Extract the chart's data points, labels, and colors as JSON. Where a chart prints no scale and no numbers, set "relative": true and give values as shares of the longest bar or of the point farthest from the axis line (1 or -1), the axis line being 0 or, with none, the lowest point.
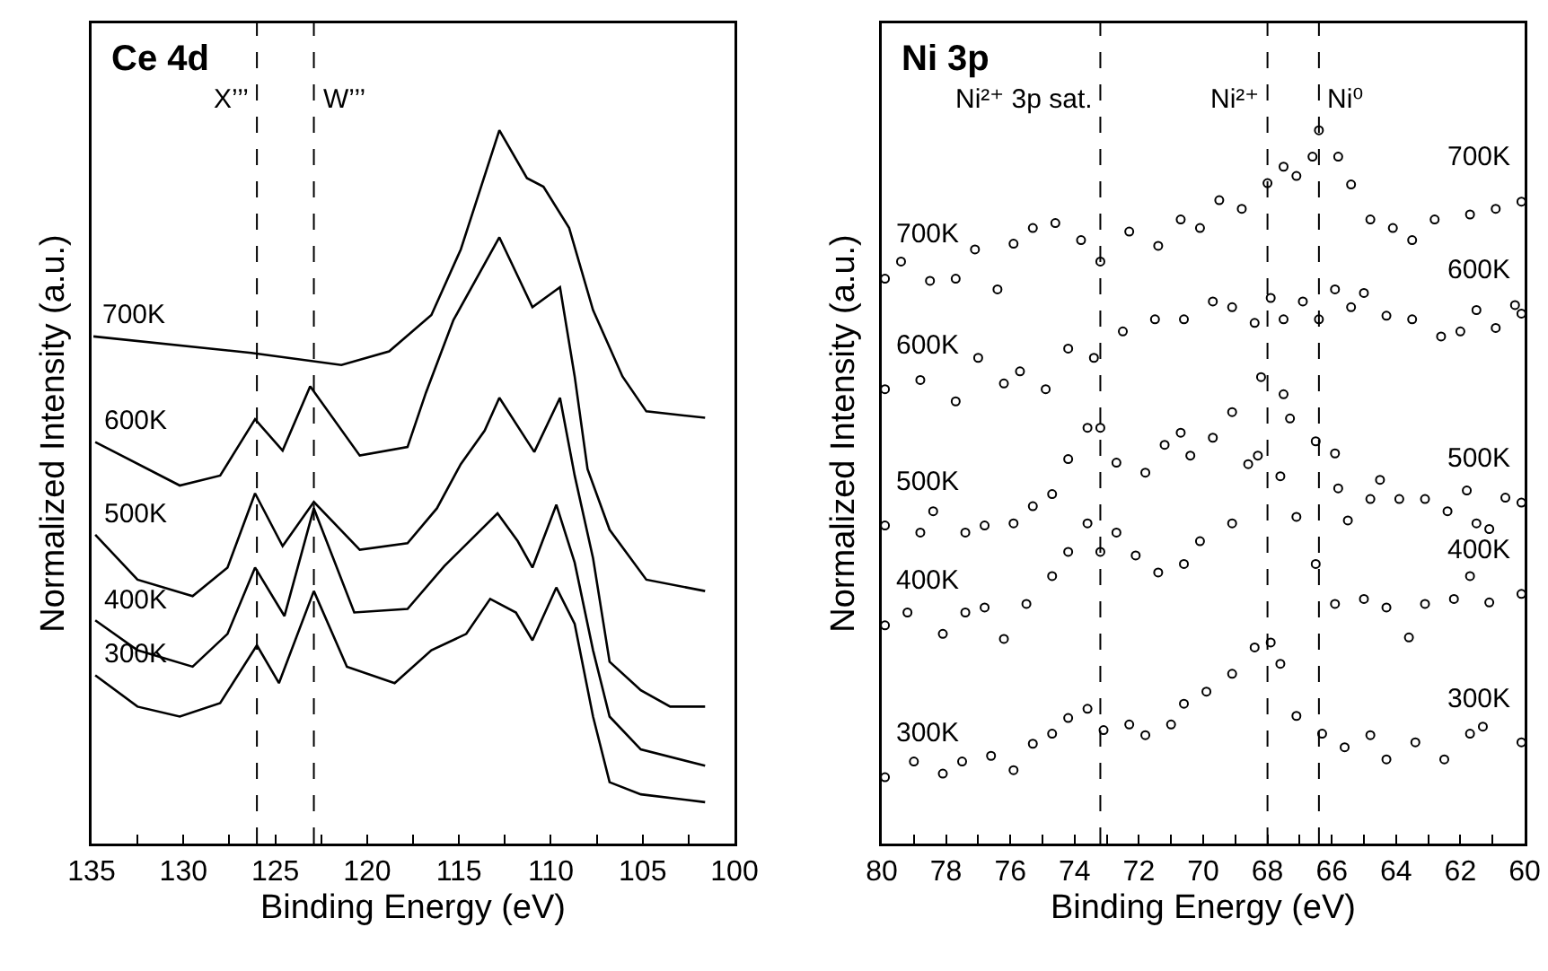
{
  "chart_data": [
    {
      "type": "line",
      "title": "Ce 4d",
      "xlabel": "Binding Energy (eV)",
      "ylabel": "Normalized Intensity (a.u.)",
      "relative": true,
      "tick_labels": "x",
      "legend": false,
      "marker": "none",
      "line_style": "solid",
      "xlim": [
        135,
        100
      ],
      "xticks": [
        135,
        {
          "value": 132.5,
          "label": null
        },
        130,
        {
          "value": 127.5,
          "label": null
        },
        125,
        {
          "value": 122.5,
          "label": null
        },
        120,
        {
          "value": 117.5,
          "label": null
        },
        115,
        {
          "value": 112.5,
          "label": null
        },
        110,
        {
          "value": 107.5,
          "label": null
        },
        105,
        {
          "value": 102.5,
          "label": null
        },
        100
      ],
      "ref_lines": [
        {
          "axis": "x",
          "value": 126,
          "label": "X’’’",
          "line_style": "dashed"
        },
        {
          "axis": "x",
          "value": 122.9,
          "label": "W’’’",
          "line_style": "dashed"
        }
      ],
      "series": [
        {
          "name": "700K",
          "color": "#000000",
          "x": [
            134.9,
            126.3,
            121.4,
            118.8,
            116.5,
            114.9,
            112.8,
            111.3,
            110.4,
            109.0,
            107.7,
            106.1,
            104.8,
            101.6
          ],
          "values": [
            0.711,
            0.688,
            0.671,
            0.69,
            0.741,
            0.833,
            1.0,
            0.933,
            0.921,
            0.863,
            0.748,
            0.655,
            0.606,
            0.597
          ]
        },
        {
          "name": "600K",
          "color": "#000000",
          "x": [
            134.8,
            130.2,
            128.0,
            126.1,
            124.6,
            123.1,
            120.4,
            117.8,
            116.8,
            115.3,
            112.8,
            111.0,
            109.5,
            108.7,
            108.0,
            106.8,
            104.8,
            101.6
          ],
          "values": [
            0.563,
            0.502,
            0.516,
            0.595,
            0.551,
            0.641,
            0.544,
            0.556,
            0.632,
            0.734,
            0.85,
            0.752,
            0.78,
            0.655,
            0.525,
            0.44,
            0.37,
            0.354
          ]
        },
        {
          "name": "500K",
          "color": "#000000",
          "x": [
            134.8,
            132.5,
            129.5,
            127.6,
            126.1,
            124.6,
            122.9,
            120.4,
            117.8,
            116.2,
            114.9,
            113.6,
            112.8,
            110.9,
            109.5,
            108.7,
            107.7,
            106.8,
            105.1,
            103.5,
            101.6
          ],
          "values": [
            0.433,
            0.37,
            0.347,
            0.387,
            0.491,
            0.417,
            0.479,
            0.412,
            0.421,
            0.47,
            0.532,
            0.579,
            0.625,
            0.549,
            0.625,
            0.516,
            0.4,
            0.255,
            0.215,
            0.192,
            0.192
          ]
        },
        {
          "name": "400K",
          "color": "#000000",
          "x": [
            134.8,
            132.5,
            129.5,
            127.6,
            126.1,
            124.5,
            122.9,
            120.7,
            117.8,
            115.8,
            112.9,
            111.8,
            111.0,
            109.7,
            108.7,
            107.7,
            106.8,
            105.1,
            101.6
          ],
          "values": [
            0.313,
            0.271,
            0.248,
            0.294,
            0.387,
            0.319,
            0.47,
            0.324,
            0.329,
            0.389,
            0.463,
            0.424,
            0.387,
            0.475,
            0.394,
            0.271,
            0.178,
            0.132,
            0.109
          ]
        },
        {
          "name": "300K",
          "color": "#000000",
          "x": [
            134.8,
            132.5,
            130.2,
            128.0,
            126.0,
            124.8,
            122.9,
            121.1,
            118.5,
            116.5,
            114.6,
            113.3,
            111.9,
            111.0,
            109.7,
            108.7,
            107.7,
            106.8,
            105.1,
            101.6
          ],
          "values": [
            0.236,
            0.192,
            0.178,
            0.197,
            0.278,
            0.225,
            0.354,
            0.248,
            0.225,
            0.271,
            0.294,
            0.343,
            0.324,
            0.285,
            0.359,
            0.308,
            0.178,
            0.086,
            0.069,
            0.058
          ]
        }
      ]
    },
    {
      "type": "scatter",
      "title": "Ni 3p",
      "xlabel": "Binding Energy (eV)",
      "ylabel": "Normalized Intensity (a.u.)",
      "relative": true,
      "tick_labels": "x",
      "legend": false,
      "marker": "circle",
      "xlim": [
        80,
        60
      ],
      "xticks": [
        80,
        {
          "value": 79,
          "label": null
        },
        78,
        {
          "value": 77,
          "label": null
        },
        76,
        {
          "value": 75,
          "label": null
        },
        74,
        {
          "value": 73,
          "label": null
        },
        72,
        {
          "value": 71,
          "label": null
        },
        70,
        {
          "value": 69,
          "label": null
        },
        68,
        {
          "value": 67,
          "label": null
        },
        66,
        {
          "value": 65,
          "label": null
        },
        64,
        {
          "value": 63,
          "label": null
        },
        62,
        {
          "value": 61,
          "label": null
        },
        60
      ],
      "ref_lines": [
        {
          "axis": "x",
          "value": 73.2,
          "label": "Ni²⁺ 3p sat.",
          "line_style": "dashed"
        },
        {
          "axis": "x",
          "value": 68.0,
          "label": "Ni²⁺",
          "line_style": "dashed"
        },
        {
          "axis": "x",
          "value": 66.4,
          "label": "Ni⁰",
          "line_style": "dashed"
        }
      ],
      "series": [
        {
          "name": "700K",
          "color": "#000000",
          "x": [
            79.9,
            79.4,
            78.5,
            77.7,
            77.1,
            76.4,
            75.9,
            75.3,
            74.6,
            73.8,
            73.2,
            72.3,
            71.4,
            70.7,
            70.1,
            69.5,
            68.8,
            68.0,
            67.5,
            67.1,
            66.6,
            66.4,
            65.8,
            65.4,
            64.8,
            64.1,
            63.5,
            62.8,
            61.7,
            60.9,
            60.1
          ],
          "values": [
            0.792,
            0.816,
            0.789,
            0.792,
            0.833,
            0.777,
            0.841,
            0.863,
            0.87,
            0.846,
            0.816,
            0.858,
            0.838,
            0.875,
            0.863,
            0.902,
            0.89,
            0.926,
            0.949,
            0.936,
            0.963,
            1.0,
            0.963,
            0.924,
            0.875,
            0.863,
            0.846,
            0.875,
            0.882,
            0.89,
            0.9
          ]
        },
        {
          "name": "600K",
          "color": "#000000",
          "x": [
            79.9,
            78.8,
            77.7,
            77.0,
            76.2,
            75.7,
            74.9,
            74.2,
            73.4,
            72.5,
            71.5,
            70.6,
            69.7,
            69.1,
            68.4,
            67.9,
            67.5,
            66.9,
            66.4,
            65.9,
            65.4,
            65.0,
            64.3,
            63.5,
            62.6,
            62.0,
            61.5,
            60.9,
            60.3,
            60.1
          ],
          "values": [
            0.637,
            0.65,
            0.62,
            0.681,
            0.645,
            0.662,
            0.637,
            0.694,
            0.681,
            0.718,
            0.735,
            0.735,
            0.76,
            0.752,
            0.73,
            0.765,
            0.735,
            0.76,
            0.735,
            0.777,
            0.752,
            0.772,
            0.74,
            0.735,
            0.711,
            0.718,
            0.748,
            0.723,
            0.755,
            0.743
          ]
        },
        {
          "name": "500K",
          "color": "#000000",
          "x": [
            79.9,
            78.8,
            78.4,
            77.4,
            76.8,
            75.9,
            75.3,
            74.7,
            74.2,
            73.6,
            73.2,
            72.7,
            71.8,
            71.2,
            70.7,
            70.4,
            69.7,
            69.1,
            68.2,
            67.5,
            67.3,
            66.5,
            65.9,
            65.8,
            65.5,
            64.8,
            64.5,
            63.9,
            63.1,
            62.4,
            61.8,
            61.5,
            61.1,
            60.6,
            60.1
          ],
          "values": [
            0.446,
            0.436,
            0.466,
            0.436,
            0.446,
            0.449,
            0.473,
            0.49,
            0.539,
            0.583,
            0.583,
            0.534,
            0.52,
            0.559,
            0.576,
            0.544,
            0.569,
            0.605,
            0.654,
            0.63,
            0.596,
            0.564,
            0.547,
            0.498,
            0.453,
            0.483,
            0.51,
            0.483,
            0.483,
            0.466,
            0.495,
            0.449,
            0.441,
            0.485,
            0.478
          ]
        },
        {
          "name": "400K",
          "color": "#000000",
          "x": [
            79.9,
            79.2,
            78.1,
            77.4,
            76.8,
            76.2,
            75.5,
            74.7,
            74.2,
            73.6,
            73.2,
            72.7,
            72.1,
            71.4,
            70.6,
            70.1,
            69.1,
            68.6,
            68.3,
            67.6,
            67.1,
            66.5,
            65.9,
            65.0,
            64.3,
            63.6,
            63.1,
            62.2,
            61.7,
            61.1,
            60.1
          ],
          "values": [
            0.306,
            0.324,
            0.294,
            0.324,
            0.331,
            0.287,
            0.336,
            0.375,
            0.409,
            0.449,
            0.409,
            0.436,
            0.404,
            0.38,
            0.392,
            0.424,
            0.449,
            0.532,
            0.544,
            0.515,
            0.458,
            0.392,
            0.336,
            0.343,
            0.331,
            0.289,
            0.336,
            0.343,
            0.375,
            0.338,
            0.35
          ]
        },
        {
          "name": "300K",
          "color": "#000000",
          "x": [
            79.9,
            79.0,
            78.1,
            77.5,
            76.6,
            75.9,
            75.3,
            74.7,
            74.2,
            73.6,
            73.1,
            72.3,
            71.8,
            71.0,
            70.6,
            69.9,
            69.1,
            68.4,
            67.9,
            67.6,
            67.1,
            66.3,
            65.6,
            64.8,
            64.3,
            63.4,
            62.5,
            61.7,
            61.3,
            60.1
          ],
          "values": [
            0.093,
            0.115,
            0.098,
            0.115,
            0.123,
            0.103,
            0.14,
            0.154,
            0.176,
            0.189,
            0.159,
            0.167,
            0.152,
            0.167,
            0.196,
            0.213,
            0.238,
            0.275,
            0.282,
            0.252,
            0.179,
            0.154,
            0.135,
            0.152,
            0.118,
            0.142,
            0.118,
            0.154,
            0.164,
            0.142
          ]
        }
      ]
    }
  ]
}
